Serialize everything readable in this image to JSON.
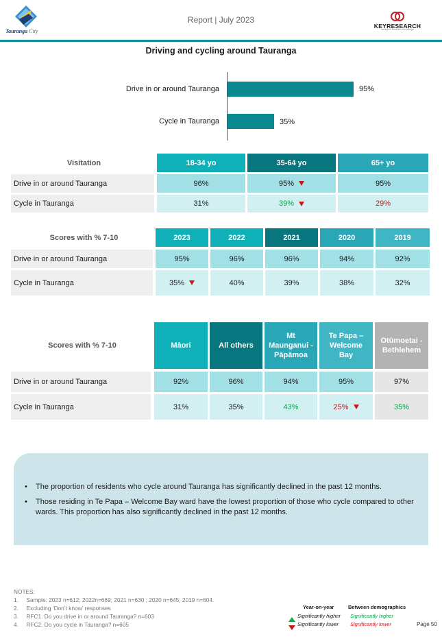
{
  "header": {
    "logo_name": "Tauranga",
    "logo_suffix": "City",
    "report_title": "Report | July 2023",
    "brand": "KEYRESEARCH",
    "brand_tagline": "Intelligent Business Knowledge"
  },
  "page_heading": "Driving and cycling around Tauranga",
  "chart_data": {
    "type": "bar",
    "categories": [
      "Drive in or around Tauranga",
      "Cycle in Tauranga"
    ],
    "values": [
      95,
      35
    ],
    "value_labels": [
      "95%",
      "35%"
    ],
    "xlim": [
      0,
      100
    ],
    "color": "#0b888f"
  },
  "visitation_table": {
    "title": "Visitation",
    "columns": [
      "18-34 yo",
      "35-64 yo",
      "65+ yo"
    ],
    "rows": [
      {
        "label": "Drive in or around Tauranga",
        "cells": [
          "96%",
          "95%",
          "95%"
        ]
      },
      {
        "label": "Cycle in Tauranga",
        "cells": [
          "31%",
          "39%",
          "29%"
        ]
      }
    ]
  },
  "year_table": {
    "title": "Scores with % 7-10",
    "columns": [
      "2023",
      "2022",
      "2021",
      "2020",
      "2019"
    ],
    "rows": [
      {
        "label": "Drive in or around Tauranga",
        "cells": [
          "95%",
          "96%",
          "96%",
          "94%",
          "92%"
        ]
      },
      {
        "label": "Cycle in Tauranga",
        "cells": [
          "35%",
          "40%",
          "39%",
          "38%",
          "32%"
        ]
      }
    ]
  },
  "ward_table": {
    "title": "Scores with % 7-10",
    "columns": [
      "Māori",
      "All others",
      "Mt Maunganui - Pāpāmoa",
      "Te Papa – Welcome Bay",
      "Otūmoetai - Bethlehem"
    ],
    "rows": [
      {
        "label": "Drive in or around Tauranga",
        "cells": [
          "92%",
          "96%",
          "94%",
          "95%",
          "97%"
        ]
      },
      {
        "label": "Cycle in Tauranga",
        "cells": [
          "31%",
          "35%",
          "43%",
          "25%",
          "35%"
        ]
      }
    ]
  },
  "insights": [
    "The proportion of residents who cycle around Tauranga has significantly declined in the past 12 months.",
    "Those residing in Te Papa – Welcome Bay ward have the lowest proportion of those who cycle compared to other wards. This proportion has also significantly declined in the past 12 months."
  ],
  "notes": {
    "title": "NOTES:",
    "items": [
      {
        "num": "1.",
        "text": "Sample: 2023 n=612; 2022n=669; 2021 n=630 ; 2020 n=645; 2019 n=604."
      },
      {
        "num": "2.",
        "text": "Excluding ‘Don’t know’ responses"
      },
      {
        "num": "3.",
        "text": "RFC1. Do you drive in or around Tauranga? n=603"
      },
      {
        "num": "4.",
        "text": "RFC2. Do you cycle in Tauranga? n=605"
      }
    ]
  },
  "legend": {
    "yoy_title": "Year-on-year",
    "yoy_higher": "Significantly higher",
    "yoy_lower": "Significantly lower",
    "demo_title": "Between demographics",
    "demo_higher": "Significantly higher",
    "demo_lower": "Significantly lower",
    "colors": {
      "higher": "#0aa44c",
      "lower": "#d11a1a"
    }
  },
  "page_number": "Page 50"
}
